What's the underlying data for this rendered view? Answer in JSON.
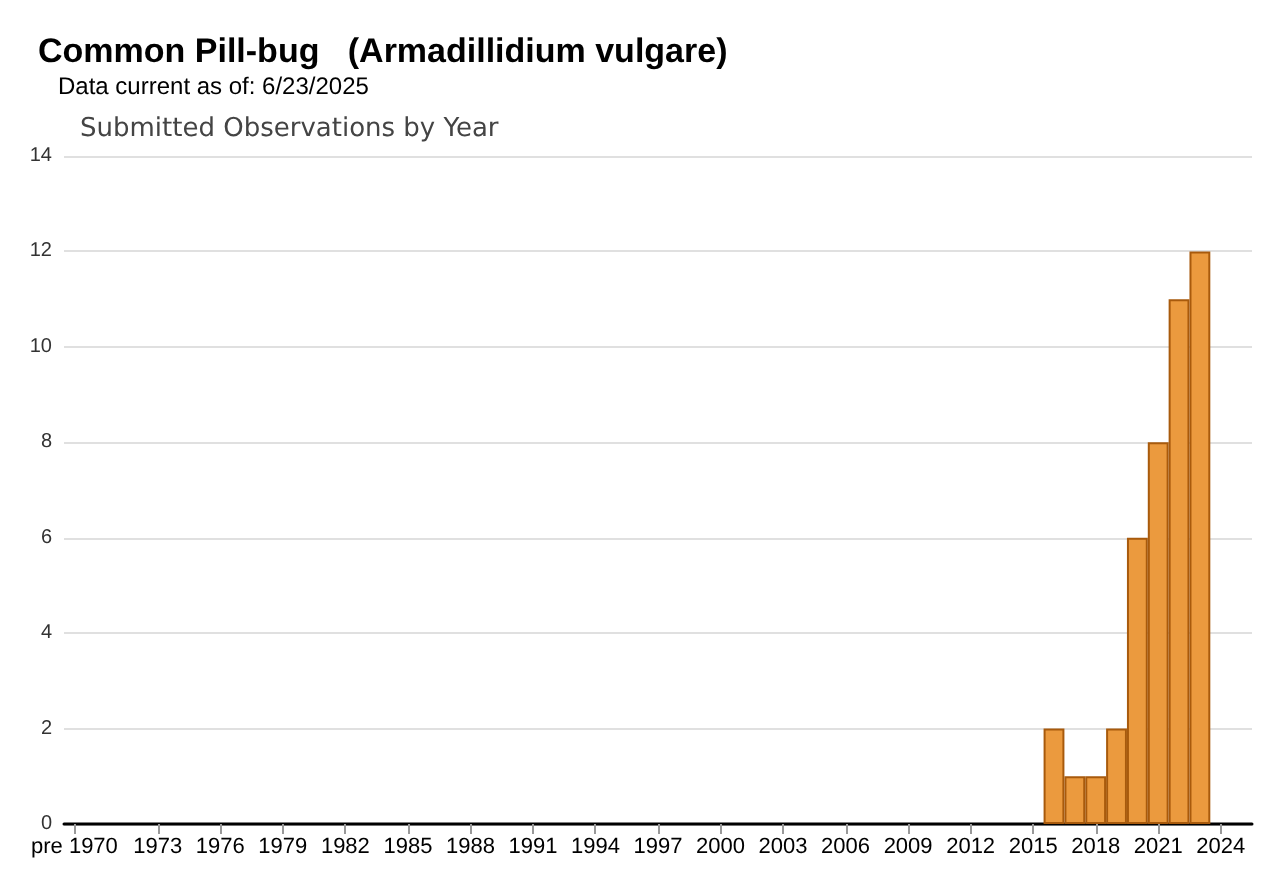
{
  "chart_data": {
    "type": "bar",
    "title": "Common Pill-bug   (Armadillidium vulgare)",
    "subtitle": "Data current as of: 6/23/2025",
    "annotations": [
      "Submitted Observations by Year"
    ],
    "categories": [
      "pre 1970",
      null,
      null,
      null,
      "1973",
      null,
      null,
      "1976",
      null,
      null,
      "1979",
      null,
      null,
      "1982",
      null,
      null,
      "1985",
      null,
      null,
      "1988",
      null,
      null,
      "1991",
      null,
      null,
      "1994",
      null,
      null,
      "1997",
      null,
      null,
      "2000",
      null,
      null,
      "2003",
      null,
      null,
      "2006",
      null,
      null,
      "2009",
      null,
      null,
      "2012",
      null,
      null,
      "2015",
      null,
      null,
      "2018",
      null,
      null,
      "2021",
      null,
      null,
      "2024",
      null
    ],
    "values": [
      0,
      0,
      0,
      0,
      0,
      0,
      0,
      0,
      0,
      0,
      0,
      0,
      0,
      0,
      0,
      0,
      0,
      0,
      0,
      0,
      0,
      0,
      0,
      0,
      0,
      0,
      0,
      0,
      0,
      0,
      0,
      0,
      0,
      0,
      0,
      0,
      0,
      0,
      0,
      0,
      0,
      0,
      0,
      0,
      0,
      0,
      0,
      2,
      1,
      1,
      2,
      6,
      8,
      11,
      12,
      0,
      0
    ],
    "color": "#eb9a3e",
    "ylim": [
      0,
      14
    ],
    "yticks": [
      0,
      2,
      4,
      6,
      8,
      10,
      12,
      14
    ],
    "grid": "y"
  }
}
